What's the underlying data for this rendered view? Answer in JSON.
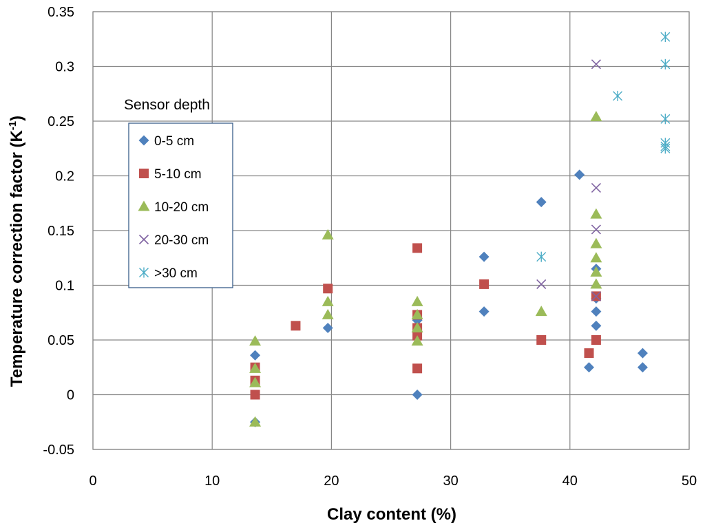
{
  "chart_data": {
    "type": "scatter",
    "title": "",
    "xlabel": "Clay content (%)",
    "ylabel_main": "Temperature correction factor (K",
    "ylabel_sup": "-1",
    "ylabel_end": ")",
    "xlim": [
      0,
      50
    ],
    "ylim": [
      -0.05,
      0.35
    ],
    "x_ticks": [
      0,
      10,
      20,
      30,
      40,
      50
    ],
    "x_tick_labels": [
      "0",
      "10",
      "20",
      "30",
      "40",
      "50"
    ],
    "y_ticks": [
      -0.05,
      0,
      0.05,
      0.1,
      0.15,
      0.2,
      0.25,
      0.3,
      0.35
    ],
    "y_tick_labels": [
      "-0.05",
      "0",
      "0.05",
      "0.1",
      "0.15",
      "0.2",
      "0.25",
      "0.3",
      "0.35"
    ],
    "grid": true,
    "legend_title": "Sensor depth",
    "legend_position": "upper-left inside",
    "series": [
      {
        "name": "0-5 cm",
        "marker": "diamond",
        "color": "#4F81BD",
        "points": [
          [
            13.6,
            0.036
          ],
          [
            13.6,
            -0.025
          ],
          [
            19.7,
            0.061
          ],
          [
            27.2,
            0.0
          ],
          [
            27.2,
            0.068
          ],
          [
            32.8,
            0.126
          ],
          [
            32.8,
            0.076
          ],
          [
            37.6,
            0.176
          ],
          [
            40.8,
            0.201
          ],
          [
            41.6,
            0.025
          ],
          [
            42.2,
            0.115
          ],
          [
            42.2,
            0.088
          ],
          [
            42.2,
            0.076
          ],
          [
            42.2,
            0.063
          ],
          [
            46.1,
            0.038
          ],
          [
            46.1,
            0.025
          ]
        ]
      },
      {
        "name": "5-10 cm",
        "marker": "square",
        "color": "#C0504D",
        "points": [
          [
            13.6,
            0.025
          ],
          [
            13.6,
            0.013
          ],
          [
            13.6,
            0.0
          ],
          [
            17.0,
            0.063
          ],
          [
            19.7,
            0.097
          ],
          [
            27.2,
            0.134
          ],
          [
            27.2,
            0.073
          ],
          [
            27.2,
            0.061
          ],
          [
            27.2,
            0.054
          ],
          [
            27.2,
            0.024
          ],
          [
            32.8,
            0.101
          ],
          [
            37.6,
            0.05
          ],
          [
            41.6,
            0.038
          ],
          [
            42.2,
            0.09
          ],
          [
            42.2,
            0.05
          ]
        ]
      },
      {
        "name": "10-20 cm",
        "marker": "triangle",
        "color": "#9BBB59",
        "points": [
          [
            13.6,
            0.049
          ],
          [
            13.6,
            0.024
          ],
          [
            13.6,
            0.011
          ],
          [
            13.6,
            -0.025
          ],
          [
            19.7,
            0.146
          ],
          [
            19.7,
            0.085
          ],
          [
            19.7,
            0.073
          ],
          [
            27.2,
            0.085
          ],
          [
            27.2,
            0.073
          ],
          [
            27.2,
            0.061
          ],
          [
            27.2,
            0.049
          ],
          [
            37.6,
            0.076
          ],
          [
            42.2,
            0.254
          ],
          [
            42.2,
            0.165
          ],
          [
            42.2,
            0.138
          ],
          [
            42.2,
            0.125
          ],
          [
            42.2,
            0.112
          ],
          [
            42.2,
            0.101
          ]
        ]
      },
      {
        "name": "20-30 cm",
        "marker": "x",
        "color": "#8064A2",
        "points": [
          [
            37.6,
            0.101
          ],
          [
            42.2,
            0.302
          ],
          [
            42.2,
            0.189
          ],
          [
            42.2,
            0.151
          ],
          [
            42.2,
            0.09
          ]
        ]
      },
      {
        "name": ">30 cm",
        "marker": "star",
        "color": "#4BACC6",
        "points": [
          [
            37.6,
            0.126
          ],
          [
            44.0,
            0.273
          ],
          [
            48.0,
            0.327
          ],
          [
            48.0,
            0.302
          ],
          [
            48.0,
            0.252
          ],
          [
            48.0,
            0.23
          ],
          [
            48.0,
            0.227
          ],
          [
            48.0,
            0.225
          ]
        ]
      }
    ]
  }
}
